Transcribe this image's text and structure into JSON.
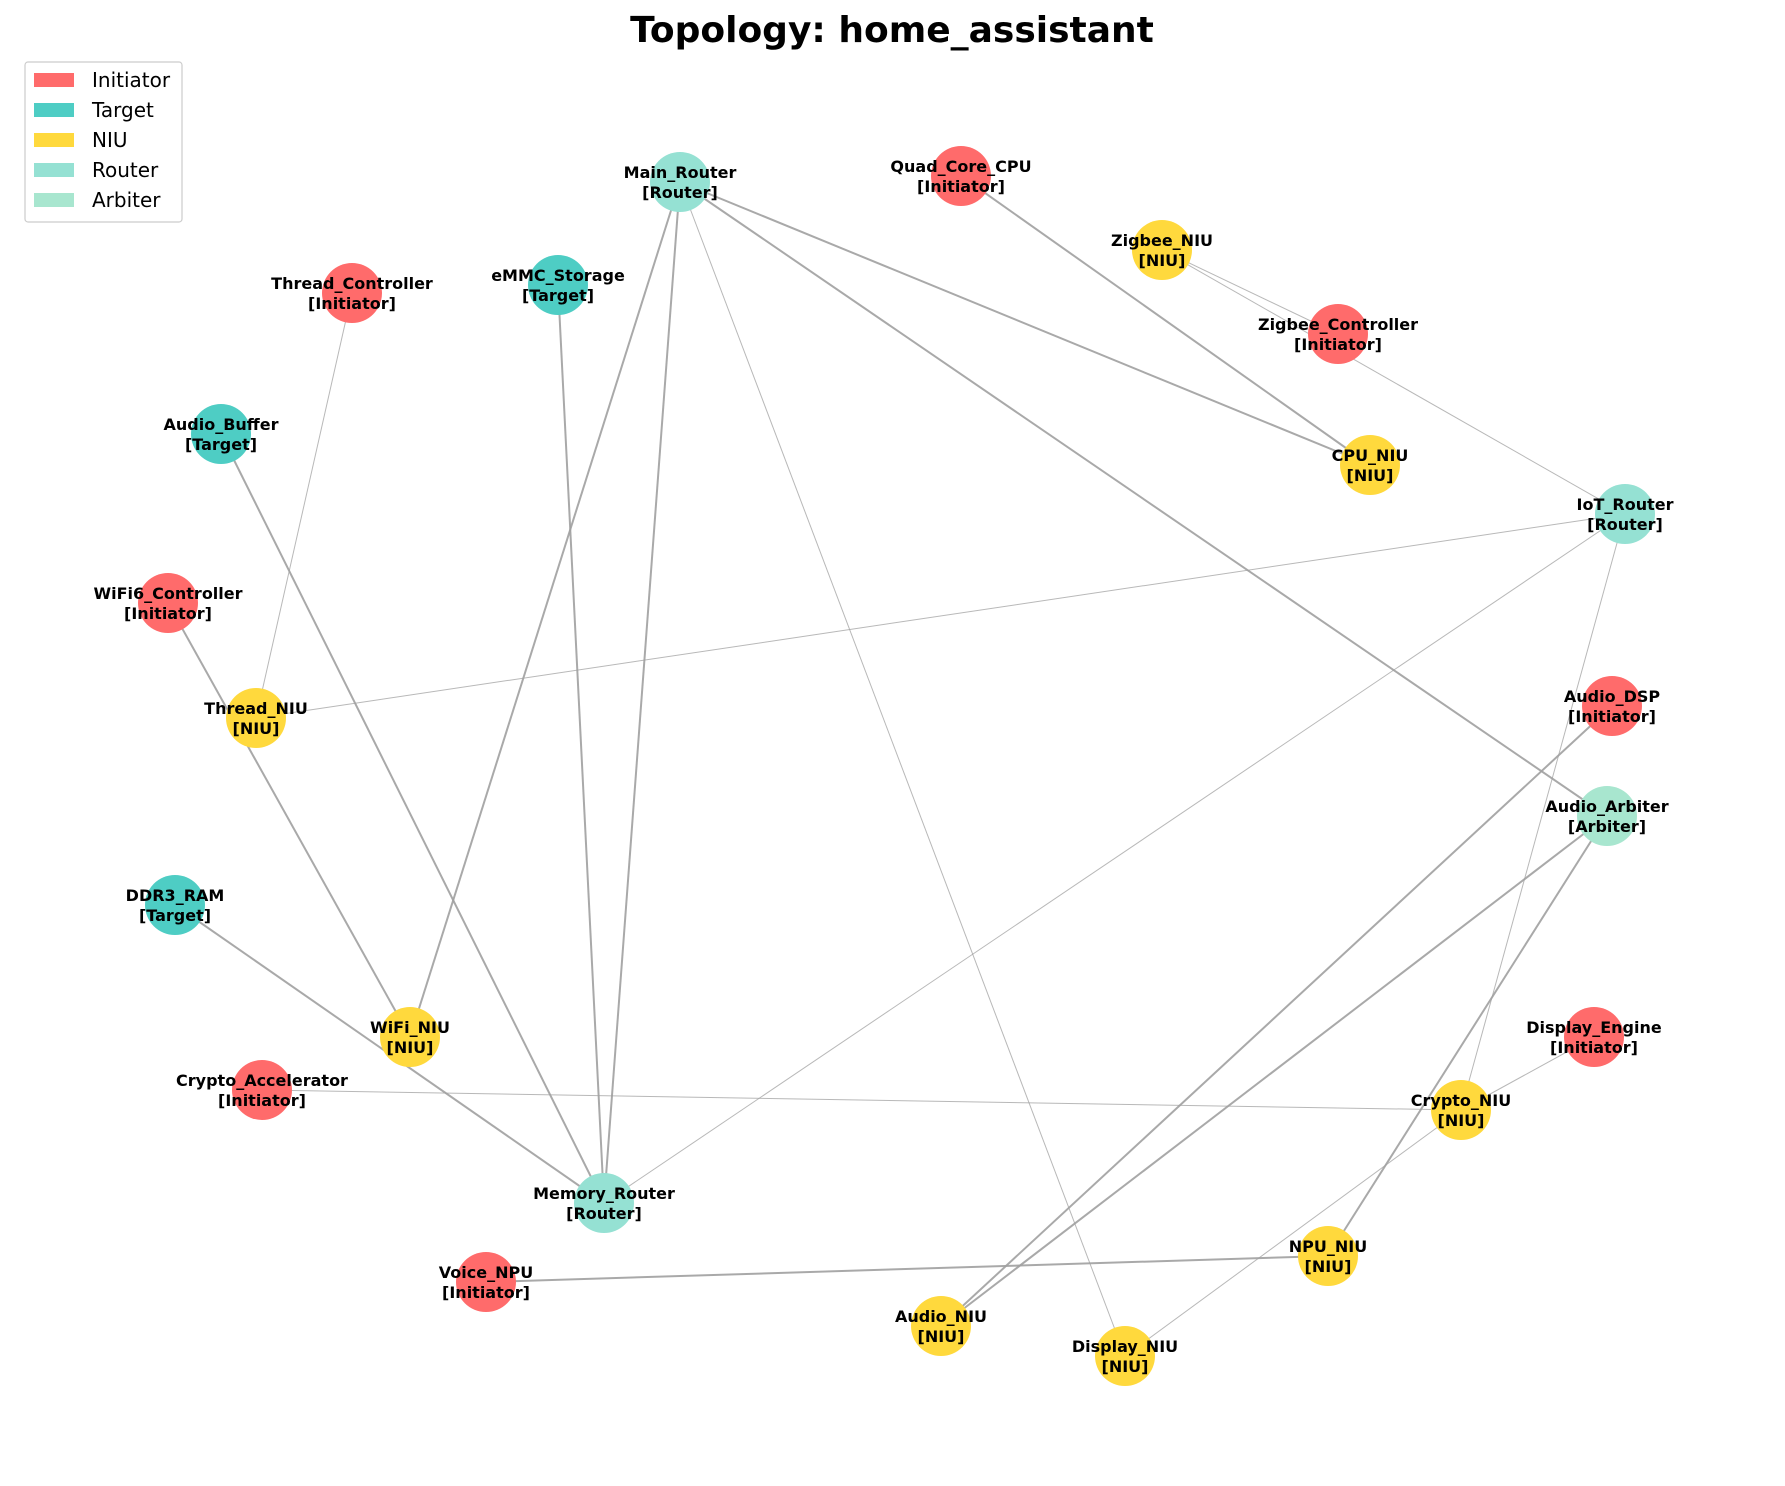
{
  "title": "Topology: home_assistant",
  "colors": {
    "Initiator": "#ff6b6b",
    "Target": "#4ecdc4",
    "NIU": "#ffd93d",
    "Router": "#95e1d3",
    "Arbiter": "#a8e6cf",
    "edge": "#a0a0a0"
  },
  "legend": [
    {
      "label": "Initiator",
      "type": "Initiator"
    },
    {
      "label": "Target",
      "type": "Target"
    },
    {
      "label": "NIU",
      "type": "NIU"
    },
    {
      "label": "Router",
      "type": "Router"
    },
    {
      "label": "Arbiter",
      "type": "Arbiter"
    }
  ],
  "nodes": [
    {
      "id": "Main_Router",
      "name": "Main_Router",
      "role": "[Router]",
      "type": "Router"
    },
    {
      "id": "Quad_Core_CPU",
      "name": "Quad_Core_CPU",
      "role": "[Initiator]",
      "type": "Initiator"
    },
    {
      "id": "Zigbee_NIU",
      "name": "Zigbee_NIU",
      "role": "[NIU]",
      "type": "NIU"
    },
    {
      "id": "Thread_Controller",
      "name": "Thread_Controller",
      "role": "[Initiator]",
      "type": "Initiator"
    },
    {
      "id": "eMMC_Storage",
      "name": "eMMC_Storage",
      "role": "[Target]",
      "type": "Target"
    },
    {
      "id": "Zigbee_Controller",
      "name": "Zigbee_Controller",
      "role": "[Initiator]",
      "type": "Initiator"
    },
    {
      "id": "Audio_Buffer",
      "name": "Audio_Buffer",
      "role": "[Target]",
      "type": "Target"
    },
    {
      "id": "CPU_NIU",
      "name": "CPU_NIU",
      "role": "[NIU]",
      "type": "NIU"
    },
    {
      "id": "IoT_Router",
      "name": "IoT_Router",
      "role": "[Router]",
      "type": "Router"
    },
    {
      "id": "WiFi6_Controller",
      "name": "WiFi6_Controller",
      "role": "[Initiator]",
      "type": "Initiator"
    },
    {
      "id": "Thread_NIU",
      "name": "Thread_NIU",
      "role": "[NIU]",
      "type": "NIU"
    },
    {
      "id": "Audio_DSP",
      "name": "Audio_DSP",
      "role": "[Initiator]",
      "type": "Initiator"
    },
    {
      "id": "Audio_Arbiter",
      "name": "Audio_Arbiter",
      "role": "[Arbiter]",
      "type": "Arbiter"
    },
    {
      "id": "DDR3_RAM",
      "name": "DDR3_RAM",
      "role": "[Target]",
      "type": "Target"
    },
    {
      "id": "WiFi_NIU",
      "name": "WiFi_NIU",
      "role": "[NIU]",
      "type": "NIU"
    },
    {
      "id": "Display_Engine",
      "name": "Display_Engine",
      "role": "[Initiator]",
      "type": "Initiator"
    },
    {
      "id": "Crypto_Accelerator",
      "name": "Crypto_Accelerator",
      "role": "[Initiator]",
      "type": "Initiator"
    },
    {
      "id": "Crypto_NIU",
      "name": "Crypto_NIU",
      "role": "[NIU]",
      "type": "NIU"
    },
    {
      "id": "Memory_Router",
      "name": "Memory_Router",
      "role": "[Router]",
      "type": "Router"
    },
    {
      "id": "NPU_NIU",
      "name": "NPU_NIU",
      "role": "[NIU]",
      "type": "NIU"
    },
    {
      "id": "Voice_NPU",
      "name": "Voice_NPU",
      "role": "[Initiator]",
      "type": "Initiator"
    },
    {
      "id": "Audio_NIU",
      "name": "Audio_NIU",
      "role": "[NIU]",
      "type": "NIU"
    },
    {
      "id": "Display_NIU",
      "name": "Display_NIU",
      "role": "[NIU]",
      "type": "NIU"
    }
  ],
  "edges": [
    {
      "source": "Main_Router",
      "target": "WiFi_NIU",
      "weight": "heavy"
    },
    {
      "source": "Main_Router",
      "target": "Memory_Router",
      "weight": "heavy"
    },
    {
      "source": "Main_Router",
      "target": "CPU_NIU",
      "weight": "heavy"
    },
    {
      "source": "Main_Router",
      "target": "Audio_Arbiter",
      "weight": "heavy"
    },
    {
      "source": "Main_Router",
      "target": "Display_NIU",
      "weight": "light"
    },
    {
      "source": "Quad_Core_CPU",
      "target": "CPU_NIU",
      "weight": "heavy"
    },
    {
      "source": "Zigbee_NIU",
      "target": "Zigbee_Controller",
      "weight": "light"
    },
    {
      "source": "Zigbee_NIU",
      "target": "IoT_Router",
      "weight": "light"
    },
    {
      "source": "Thread_Controller",
      "target": "Thread_NIU",
      "weight": "light"
    },
    {
      "source": "eMMC_Storage",
      "target": "Memory_Router",
      "weight": "heavy"
    },
    {
      "source": "Audio_Buffer",
      "target": "Memory_Router",
      "weight": "heavy"
    },
    {
      "source": "IoT_Router",
      "target": "Thread_NIU",
      "weight": "light"
    },
    {
      "source": "IoT_Router",
      "target": "Memory_Router",
      "weight": "light"
    },
    {
      "source": "IoT_Router",
      "target": "Crypto_NIU",
      "weight": "light"
    },
    {
      "source": "WiFi6_Controller",
      "target": "WiFi_NIU",
      "weight": "heavy"
    },
    {
      "source": "Audio_DSP",
      "target": "Audio_NIU",
      "weight": "heavy"
    },
    {
      "source": "Audio_Arbiter",
      "target": "Audio_NIU",
      "weight": "heavy"
    },
    {
      "source": "Audio_Arbiter",
      "target": "NPU_NIU",
      "weight": "heavy"
    },
    {
      "source": "DDR3_RAM",
      "target": "Memory_Router",
      "weight": "heavy"
    },
    {
      "source": "Display_Engine",
      "target": "Crypto_NIU",
      "weight": "light"
    },
    {
      "source": "Crypto_Accelerator",
      "target": "Crypto_NIU",
      "weight": "light"
    },
    {
      "source": "Crypto_NIU",
      "target": "Display_NIU",
      "weight": "light"
    },
    {
      "source": "Voice_NPU",
      "target": "NPU_NIU",
      "weight": "heavy"
    }
  ]
}
